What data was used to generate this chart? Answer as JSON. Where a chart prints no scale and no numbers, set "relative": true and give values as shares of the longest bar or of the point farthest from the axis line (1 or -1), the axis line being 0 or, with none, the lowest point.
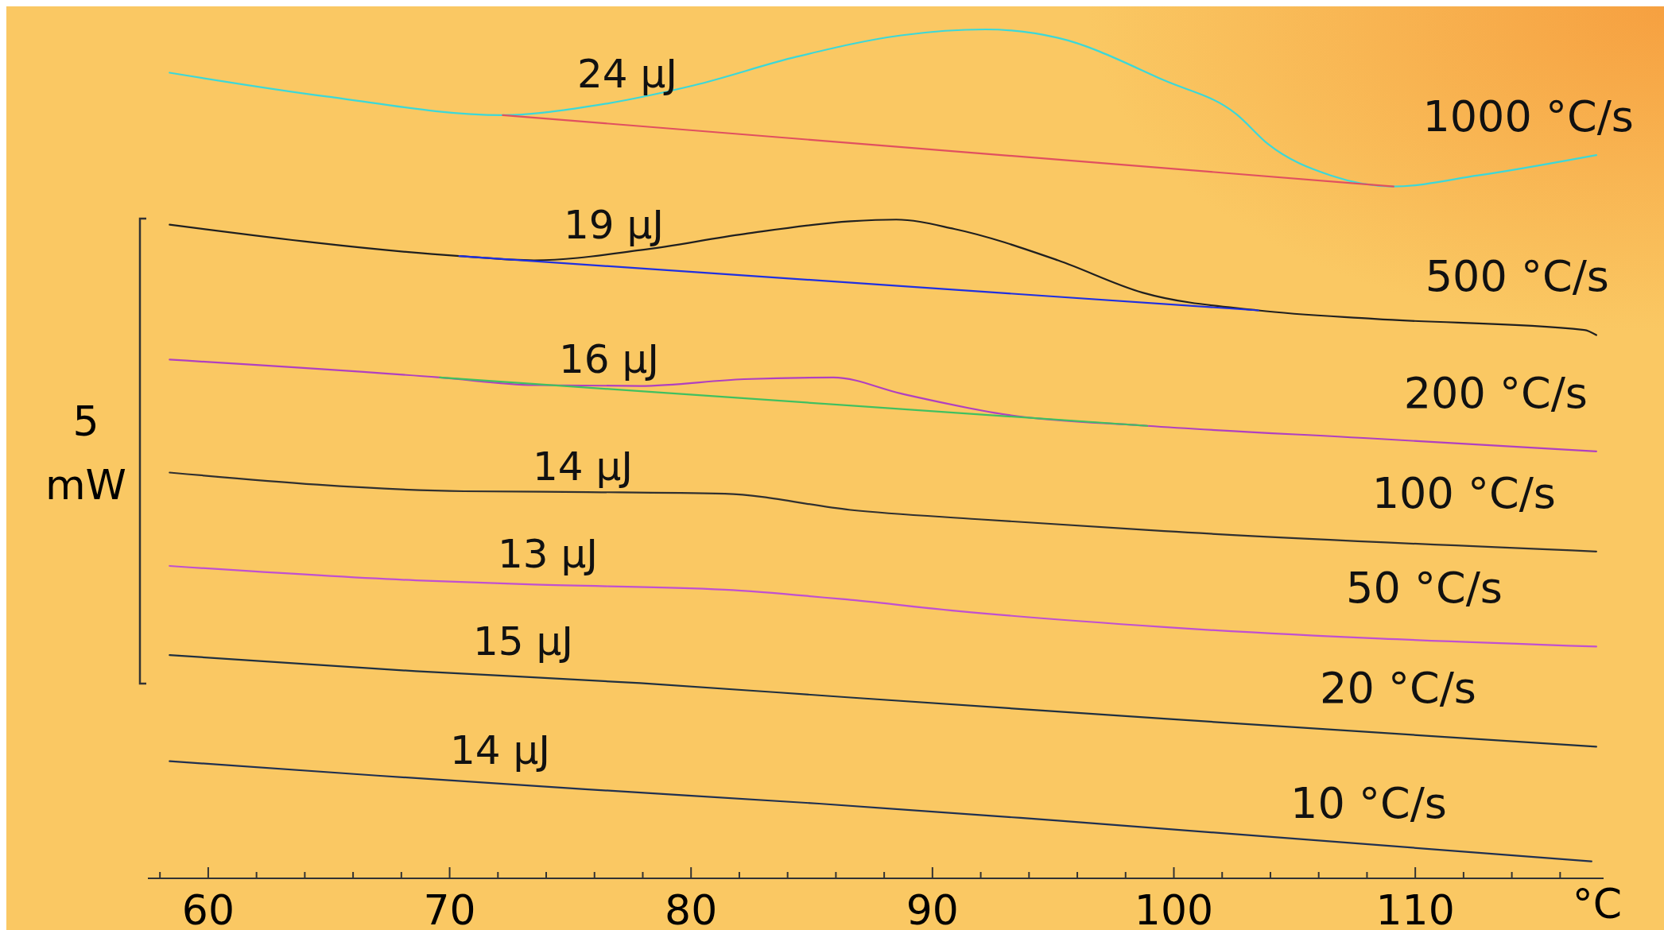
{
  "chart_data": {
    "type": "line",
    "relative": true,
    "xlabel": "°C",
    "ylabel": "5 mW",
    "xlim": [
      57.5,
      117.8
    ],
    "xticks": [
      {
        "value": 58,
        "label": null
      },
      60,
      {
        "value": 62,
        "label": null
      },
      {
        "value": 64,
        "label": null
      },
      {
        "value": 66,
        "label": null
      },
      {
        "value": 68,
        "label": null
      },
      70,
      {
        "value": 72,
        "label": null
      },
      {
        "value": 74,
        "label": null
      },
      {
        "value": 76,
        "label": null
      },
      {
        "value": 78,
        "label": null
      },
      80,
      {
        "value": 82,
        "label": null
      },
      {
        "value": 84,
        "label": null
      },
      {
        "value": 86,
        "label": null
      },
      {
        "value": 88,
        "label": null
      },
      90,
      {
        "value": 92,
        "label": null
      },
      {
        "value": 94,
        "label": null
      },
      {
        "value": 96,
        "label": null
      },
      {
        "value": 98,
        "label": null
      },
      100,
      {
        "value": 102,
        "label": null
      },
      {
        "value": 104,
        "label": null
      },
      {
        "value": 106,
        "label": null
      },
      {
        "value": 108,
        "label": null
      },
      110,
      {
        "value": 112,
        "label": null
      },
      {
        "value": 114,
        "label": null
      },
      {
        "value": 116,
        "label": null
      }
    ],
    "line_style": "solid",
    "series": [
      {
        "name": "1000 °C/s",
        "color": "#3cd8d8",
        "x": [
          58.4,
          64.9,
          72.2,
          75.7,
          80.1,
          84.4,
          88.7,
          92.2,
          95.2,
          99.6,
          102.6,
          103.9,
          106.5,
          109.1,
          112.6,
          117.5
        ],
        "values": [
          0.949,
          0.921,
          0.899,
          0.909,
          0.934,
          0.968,
          0.993,
          1.0,
          0.99,
          0.94,
          0.9,
          0.865,
          0.828,
          0.815,
          0.828,
          0.852
        ]
      },
      {
        "color": "#e05060",
        "x": [
          72.2,
          109.1
        ],
        "values": [
          0.899,
          0.815
        ]
      },
      {
        "name": "500 °C/s",
        "color": "#202020",
        "x": [
          58.4,
          70.4,
          73.5,
          77.9,
          82.2,
          86.6,
          88.5,
          90.9,
          95.2,
          98.7,
          103.5,
          108.3,
          117.0,
          117.5
        ],
        "values": [
          0.77,
          0.733,
          0.728,
          0.74,
          0.759,
          0.774,
          0.776,
          0.765,
          0.728,
          0.69,
          0.669,
          0.659,
          0.646,
          0.64
        ]
      },
      {
        "color": "#2030e0",
        "x": [
          70.4,
          103.5
        ],
        "values": [
          0.733,
          0.669
        ]
      },
      {
        "name": "200 °C/s",
        "color": "#b040c0",
        "x": [
          58.4,
          69.6,
          73.5,
          77.9,
          82.2,
          85.9,
          88.7,
          93.1,
          98.9,
          108.3,
          117.5
        ],
        "values": [
          0.611,
          0.59,
          0.581,
          0.58,
          0.588,
          0.59,
          0.571,
          0.546,
          0.533,
          0.518,
          0.503
        ]
      },
      {
        "color": "#40c060",
        "x": [
          69.6,
          98.9
        ],
        "values": [
          0.59,
          0.533
        ]
      },
      {
        "name": "100 °C/s",
        "color": "#303030",
        "x": [
          58.4,
          70.6,
          75.7,
          81.4,
          86.6,
          91.9,
          99.6,
          117.5
        ],
        "values": [
          0.478,
          0.456,
          0.455,
          0.453,
          0.434,
          0.423,
          0.409,
          0.385
        ]
      },
      {
        "name": "50 °C/s",
        "color": "#c050d0",
        "x": [
          58.4,
          68.6,
          73.5,
          81.4,
          86.6,
          91.0,
          99.6,
          117.5
        ],
        "values": [
          0.368,
          0.351,
          0.346,
          0.34,
          0.328,
          0.315,
          0.296,
          0.273
        ]
      },
      {
        "name": "20 °C/s",
        "color": "#203040",
        "x": [
          58.4,
          68.6,
          77.9,
          86.6,
          99.6,
          117.5
        ],
        "values": [
          0.263,
          0.244,
          0.23,
          0.213,
          0.188,
          0.155
        ]
      },
      {
        "name": "10 °C/s",
        "color": "#203050",
        "x": [
          58.4,
          67.0,
          75.6,
          85.3,
          95.2,
          117.3
        ],
        "values": [
          0.138,
          0.121,
          0.105,
          0.088,
          0.068,
          0.02
        ]
      }
    ],
    "annotations": [
      "24 µJ",
      "19 µJ",
      "16 µJ",
      "14 µJ",
      "13 µJ",
      "15 µJ",
      "14 µJ"
    ]
  }
}
